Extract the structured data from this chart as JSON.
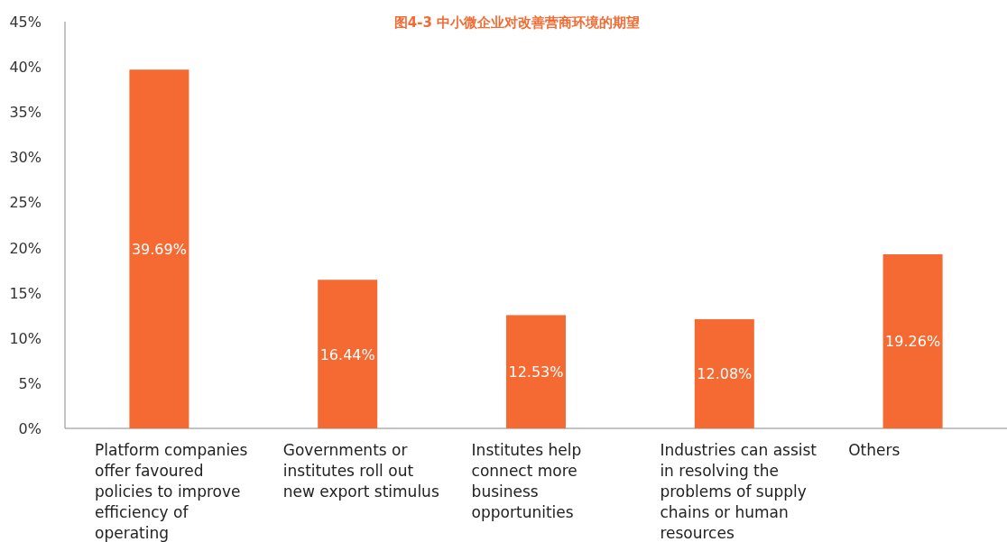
{
  "chart_data": {
    "type": "bar",
    "title": "图4-3 中小微企业对改善营商环境的期望",
    "categories": [
      "Platform companies offer favoured policies to improve efficiency of operating",
      "Governments or institutes roll out new export stimulus",
      "Institutes help connect more business opportunities",
      "Industries can assist in resolving the problems of supply chains or human resources",
      "Others"
    ],
    "values": [
      39.69,
      16.44,
      12.53,
      12.08,
      19.26
    ],
    "value_labels": [
      "39.69%",
      "16.44%",
      "12.53%",
      "12.08%",
      "19.26%"
    ],
    "color": "#f46a32",
    "ylim": [
      0,
      45
    ],
    "yticks": [
      {
        "value": 0,
        "label": "0%"
      },
      {
        "value": 5,
        "label": "5%"
      },
      {
        "value": 10,
        "label": "10%"
      },
      {
        "value": 15,
        "label": "15%"
      },
      {
        "value": 20,
        "label": "20%"
      },
      {
        "value": 25,
        "label": "25%"
      },
      {
        "value": 30,
        "label": "30%"
      },
      {
        "value": 35,
        "label": "35%"
      },
      {
        "value": 40,
        "label": "40%"
      },
      {
        "value": 45,
        "label": "45%"
      }
    ],
    "grid": false
  }
}
